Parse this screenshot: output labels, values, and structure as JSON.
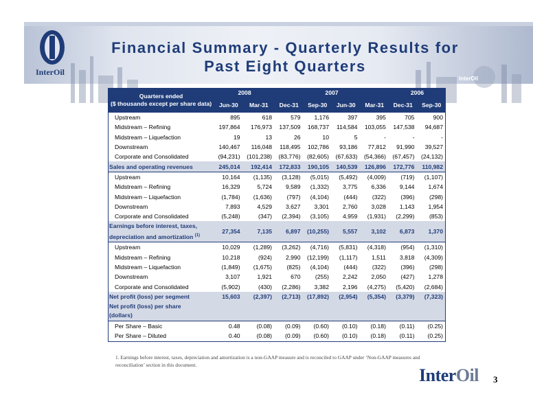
{
  "header": {
    "title_line1": "Financial Summary - Quarterly Results for",
    "title_line2": "Past Eight Quarters",
    "logo_text": "InterOil",
    "banner_small_logo": "InterOil"
  },
  "table": {
    "header_label_line1": "Quarters ended",
    "header_label_line2": "($ thousands except per share data)",
    "years": [
      {
        "label": "2008",
        "span": 2
      },
      {
        "label": "2007",
        "span": 4
      },
      {
        "label": "2006",
        "span": 2
      }
    ],
    "quarters": [
      "Jun-30",
      "Mar-31",
      "Dec-31",
      "Sep-30",
      "Jun-30",
      "Mar-31",
      "Dec-31",
      "Sep-30"
    ],
    "rows": [
      {
        "kind": "r",
        "label": "Upstream",
        "values": [
          "895",
          "618",
          "579",
          "1,176",
          "397",
          "395",
          "705",
          "900"
        ]
      },
      {
        "kind": "r",
        "label": "Midstream – Refining",
        "values": [
          "197,864",
          "176,973",
          "137,509",
          "168,737",
          "114,584",
          "103,055",
          "147,538",
          "94,687"
        ]
      },
      {
        "kind": "r",
        "label": "Midstream – Liquefaction",
        "values": [
          "19",
          "13",
          "26",
          "10",
          "5",
          "-",
          "-",
          "-"
        ]
      },
      {
        "kind": "r",
        "label": "Downstream",
        "values": [
          "140,467",
          "116,048",
          "118,495",
          "102,786",
          "93,186",
          "77,812",
          "91,990",
          "39,527"
        ]
      },
      {
        "kind": "r",
        "label": "Corporate and Consolidated",
        "values": [
          "(94,231)",
          "(101,238)",
          "(83,776)",
          "(82,605)",
          "(67,633)",
          "(54,366)",
          "(67,457)",
          "(24,132)"
        ]
      },
      {
        "kind": "tot",
        "label": "Sales and operating revenues",
        "values": [
          "245,014",
          "192,414",
          "172,833",
          "190,105",
          "140,539",
          "126,896",
          "172,776",
          "110,982"
        ]
      },
      {
        "kind": "r",
        "label": "Upstream",
        "values": [
          "10,164",
          "(1,135)",
          "(3,128)",
          "(5,015)",
          "(5,492)",
          "(4,009)",
          "(719)",
          "(1,107)"
        ]
      },
      {
        "kind": "r",
        "label": "Midstream – Refining",
        "values": [
          "16,329",
          "5,724",
          "9,589",
          "(1,332)",
          "3,775",
          "6,336",
          "9,144",
          "1,674"
        ]
      },
      {
        "kind": "r",
        "label": "Midstream – Liquefaction",
        "values": [
          "(1,784)",
          "(1,636)",
          "(797)",
          "(4,104)",
          "(444)",
          "(322)",
          "(396)",
          "(298)"
        ]
      },
      {
        "kind": "r",
        "label": "Downstream",
        "values": [
          "7,893",
          "4,529",
          "3,627",
          "3,301",
          "2,760",
          "3,028",
          "1,143",
          "1,954"
        ]
      },
      {
        "kind": "r",
        "label": "Corporate and Consolidated",
        "values": [
          "(5,248)",
          "(347)",
          "(2,394)",
          "(3,105)",
          "4,959",
          "(1,931)",
          "(2,299)",
          "(853)"
        ]
      },
      {
        "kind": "ebit",
        "label": "Earnings before interest, taxes,",
        "label2": "depreciation and amortization",
        "sup": "(1)",
        "values": [
          "27,354",
          "7,135",
          "6,897",
          "(10,255)",
          "5,557",
          "3,102",
          "6,873",
          "1,370"
        ]
      },
      {
        "kind": "r",
        "label": "Upstream",
        "values": [
          "10,029",
          "(1,289)",
          "(3,262)",
          "(4,716)",
          "(5,831)",
          "(4,318)",
          "(954)",
          "(1,310)"
        ]
      },
      {
        "kind": "r",
        "label": "Midstream – Refining",
        "values": [
          "10,218",
          "(924)",
          "2,990",
          "(12,199)",
          "(1,117)",
          "1,511",
          "3,818",
          "(4,309)"
        ]
      },
      {
        "kind": "r",
        "label": "Midstream – Liquefaction",
        "values": [
          "(1,849)",
          "(1,675)",
          "(825)",
          "(4,104)",
          "(444)",
          "(322)",
          "(396)",
          "(298)"
        ]
      },
      {
        "kind": "r",
        "label": "Downstream",
        "values": [
          "3,107",
          "1,921",
          "670",
          "(255)",
          "2,242",
          "2,050",
          "(427)",
          "1,278"
        ]
      },
      {
        "kind": "r",
        "label": "Corporate and Consolidated",
        "values": [
          "(5,902)",
          "(430)",
          "(2,286)",
          "3,382",
          "2,196",
          "(4,275)",
          "(5,420)",
          "(2,684)"
        ]
      },
      {
        "kind": "net",
        "label": "Net profit (loss) per segment",
        "values": [
          "15,603",
          "(2,397)",
          "(2,713)",
          "(17,892)",
          "(2,954)",
          "(5,354)",
          "(3,379)",
          "(7,323)"
        ]
      },
      {
        "kind": "ps",
        "label": "Net profit (loss) per share",
        "label2": "(dollars)",
        "values": [
          "",
          "",
          "",
          "",
          "",
          "",
          "",
          ""
        ]
      },
      {
        "kind": "r",
        "label": "Per Share – Basic",
        "values": [
          "0.48",
          "(0.08)",
          "(0.09)",
          "(0.60)",
          "(0.10)",
          "(0.18)",
          "(0.11)",
          "(0.25)"
        ]
      },
      {
        "kind": "r",
        "label": "Per Share – Diluted",
        "values": [
          "0.40",
          "(0.08)",
          "(0.09)",
          "(0.60)",
          "(0.10)",
          "(0.18)",
          "(0.11)",
          "(0.25)"
        ]
      }
    ]
  },
  "footnote": "1.  Earnings before interest, taxes, depreciation and amortization is a non-GAAP measure and is reconciled to GAAP under ‘Non-GAAP measures and reconciliation’ section in this document.",
  "brand": {
    "part1": "Inter",
    "part2": "Oil"
  },
  "page_number": "3",
  "colors": {
    "primary": "#1f3c78",
    "row_highlight": "#d4d9e6"
  }
}
